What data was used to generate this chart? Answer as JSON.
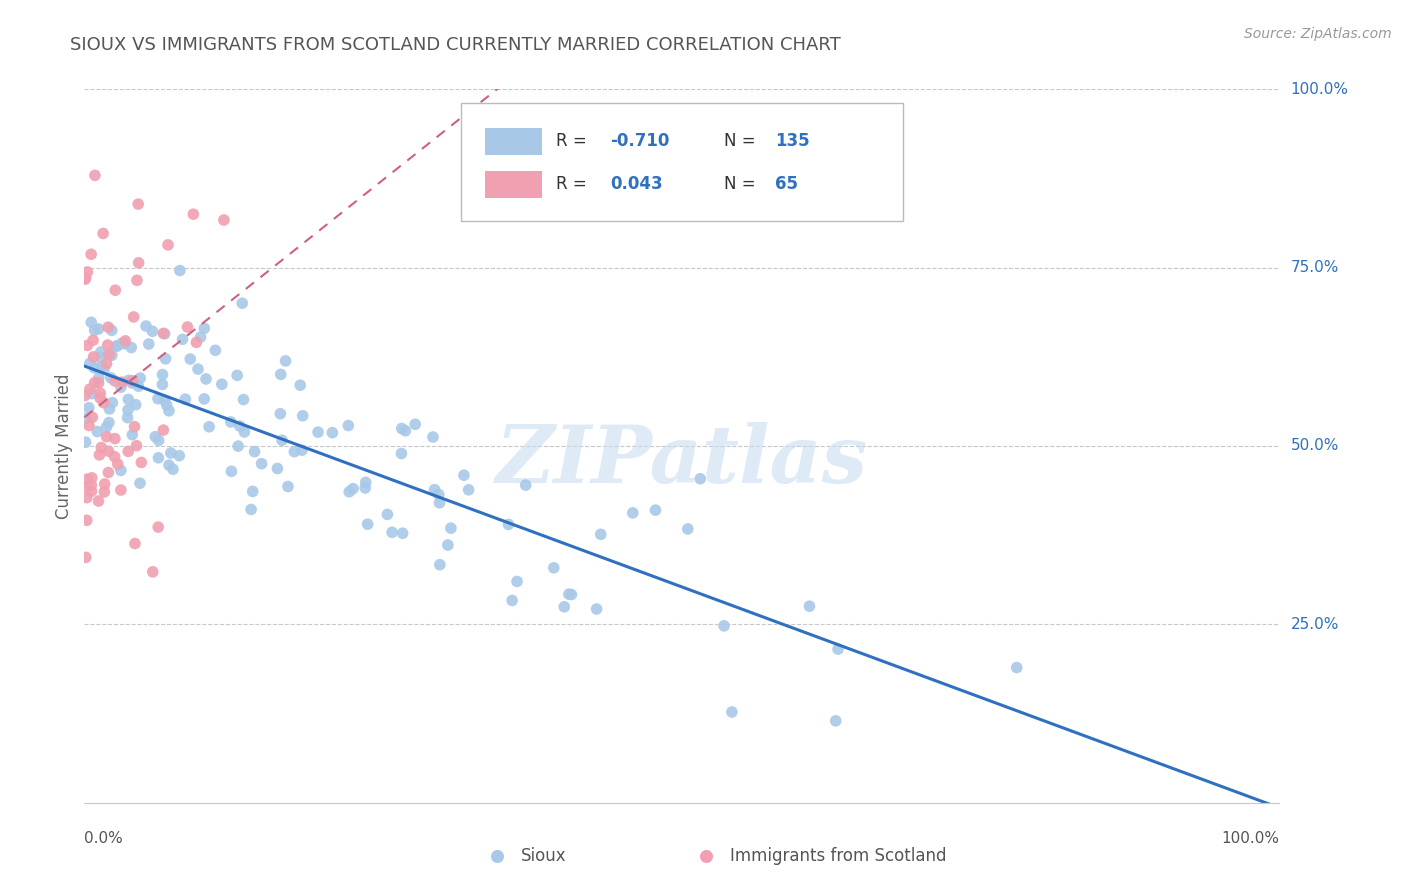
{
  "title": "SIOUX VS IMMIGRANTS FROM SCOTLAND CURRENTLY MARRIED CORRELATION CHART",
  "source": "Source: ZipAtlas.com",
  "ylabel": "Currently Married",
  "sioux_color": "#a8c8e8",
  "scotland_color": "#f0a0b0",
  "sioux_line_color": "#3070c0",
  "scotland_line_color": "#d06080",
  "background_color": "#ffffff",
  "grid_color": "#c8c8c8",
  "watermark": "ZIPatlas",
  "R_sioux": -0.71,
  "N_sioux": 135,
  "R_scotland": 0.043,
  "N_scotland": 65,
  "sioux_seed": 42,
  "scotland_seed": 99
}
